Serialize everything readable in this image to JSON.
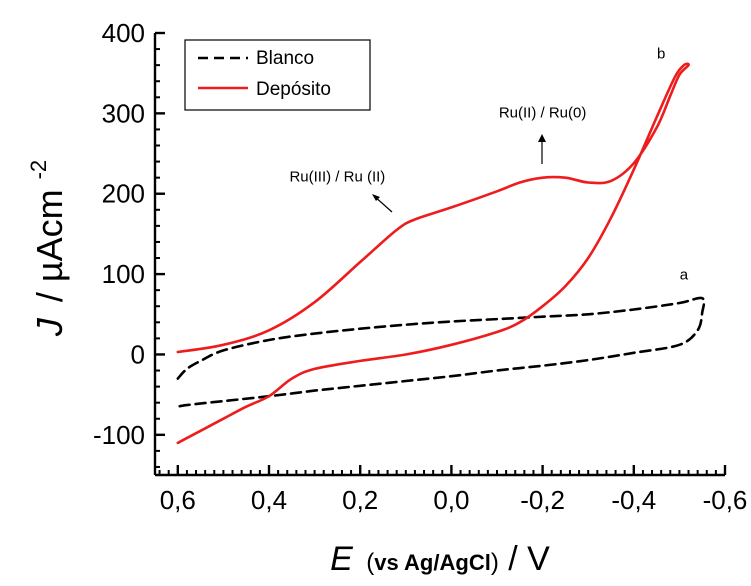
{
  "chart_data": {
    "type": "line",
    "xlabel": {
      "symbol": "E",
      "qualifier": "vs Ag/AgCl",
      "unit": "V"
    },
    "ylabel": {
      "symbol": "J",
      "unit_base": "µAcm",
      "unit_exp": "-2"
    },
    "xlim": [
      0.65,
      -0.6
    ],
    "ylim": [
      -150,
      400
    ],
    "x_ticks": [
      0.6,
      0.4,
      0.2,
      0.0,
      -0.2,
      -0.4,
      -0.6
    ],
    "x_tick_labels": [
      "0,6",
      "0,4",
      "0,2",
      "0,0",
      "-0,2",
      "-0,4",
      "-0,6"
    ],
    "y_ticks": [
      -100,
      0,
      100,
      200,
      300,
      400
    ],
    "y_tick_labels": [
      "-100",
      "0",
      "100",
      "200",
      "300",
      "400"
    ],
    "grid": false,
    "legend_position": "top-left",
    "series": [
      {
        "name": "Blanco",
        "color": "#000000",
        "style": "dashed",
        "x": [
          0.6,
          0.58,
          0.55,
          0.5,
          0.4,
          0.3,
          0.2,
          0.1,
          0.0,
          -0.1,
          -0.2,
          -0.3,
          -0.4,
          -0.5,
          -0.55,
          -0.55,
          -0.54,
          -0.5,
          -0.4,
          -0.3,
          -0.2,
          -0.1,
          0.0,
          0.1,
          0.2,
          0.3,
          0.4,
          0.5,
          0.58,
          0.6
        ],
        "y": [
          -30,
          -18,
          -8,
          5,
          18,
          26,
          32,
          37,
          41,
          44,
          47,
          50,
          56,
          64,
          70,
          52,
          30,
          12,
          2,
          -7,
          -14,
          -20,
          -27,
          -33,
          -39,
          -45,
          -52,
          -58,
          -63,
          -65
        ]
      },
      {
        "name": "Depósito",
        "color": "#ee1c1c",
        "style": "solid",
        "x": [
          0.6,
          0.5,
          0.4,
          0.3,
          0.2,
          0.12,
          0.08,
          0.0,
          -0.1,
          -0.15,
          -0.2,
          -0.25,
          -0.3,
          -0.35,
          -0.4,
          -0.45,
          -0.48,
          -0.5,
          -0.52,
          -0.51,
          -0.49,
          -0.45,
          -0.4,
          -0.35,
          -0.3,
          -0.25,
          -0.2,
          -0.15,
          -0.1,
          0.0,
          0.1,
          0.2,
          0.3,
          0.35,
          0.4,
          0.45,
          0.5,
          0.55,
          0.6
        ],
        "y": [
          3,
          12,
          30,
          65,
          115,
          155,
          168,
          183,
          203,
          214,
          220,
          220,
          214,
          216,
          238,
          282,
          322,
          348,
          360,
          360,
          345,
          295,
          230,
          170,
          120,
          85,
          60,
          40,
          28,
          12,
          0,
          -8,
          -18,
          -30,
          -52,
          -65,
          -80,
          -95,
          -110
        ]
      }
    ],
    "annotations": [
      {
        "text": "Ru(III) / Ru (II)",
        "x": 0.25,
        "y": 215
      },
      {
        "text": "Ru(II) / Ru(0)",
        "x": -0.2,
        "y": 295
      },
      {
        "text": "a",
        "x": -0.51,
        "y": 93
      },
      {
        "text": "b",
        "x": -0.46,
        "y": 368
      }
    ]
  }
}
